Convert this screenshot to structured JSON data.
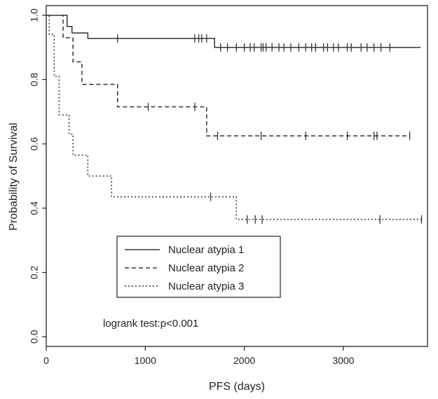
{
  "chart_data": {
    "type": "line",
    "title": "",
    "xlabel": "PFS (days)",
    "ylabel": "Probability of Survival",
    "xlim": [
      0,
      3850
    ],
    "ylim": [
      -0.03,
      1.03
    ],
    "x_ticks": [
      0,
      1000,
      2000,
      3000
    ],
    "y_ticks": [
      0.0,
      0.2,
      0.4,
      0.6,
      0.8,
      1.0
    ],
    "x_tick_labels": [
      "0",
      "1000",
      "2000",
      "3000"
    ],
    "y_tick_labels": [
      "0.0",
      "0.2",
      "0.4",
      "0.6",
      "0.8",
      "1.0"
    ],
    "grid": false,
    "legend_position": "lower-left",
    "annotation": "logrank test:p<0.001",
    "series": [
      {
        "name": "Nuclear atypia 1",
        "style": "solid",
        "steps": [
          [
            0,
            1.0
          ],
          [
            210,
            0.965
          ],
          [
            260,
            0.945
          ],
          [
            420,
            0.928
          ],
          [
            1700,
            0.9
          ],
          [
            3780,
            0.9
          ]
        ],
        "censors": [
          720,
          1500,
          1540,
          1570,
          1620,
          1760,
          1830,
          1920,
          2000,
          2060,
          2100,
          2170,
          2190,
          2220,
          2280,
          2350,
          2400,
          2470,
          2550,
          2620,
          2680,
          2720,
          2800,
          2840,
          2900,
          2950,
          3040,
          3080,
          3180,
          3240,
          3310,
          3380,
          3470
        ]
      },
      {
        "name": "Nuclear atypia 2",
        "style": "dashed",
        "steps": [
          [
            0,
            1.0
          ],
          [
            170,
            0.93
          ],
          [
            270,
            0.855
          ],
          [
            360,
            0.785
          ],
          [
            720,
            0.715
          ],
          [
            1620,
            0.625
          ],
          [
            3670,
            0.625
          ]
        ],
        "censors": [
          1030,
          1500,
          1730,
          2170,
          2620,
          3040,
          3310,
          3340,
          3670
        ]
      },
      {
        "name": "Nuclear atypia 3",
        "style": "dotted",
        "steps": [
          [
            0,
            1.0
          ],
          [
            30,
            0.94
          ],
          [
            80,
            0.81
          ],
          [
            130,
            0.69
          ],
          [
            230,
            0.63
          ],
          [
            270,
            0.565
          ],
          [
            420,
            0.5
          ],
          [
            660,
            0.435
          ],
          [
            1920,
            0.365
          ],
          [
            3790,
            0.365
          ]
        ],
        "censors": [
          1660,
          2030,
          2110,
          2180,
          3370,
          3790
        ]
      }
    ]
  }
}
